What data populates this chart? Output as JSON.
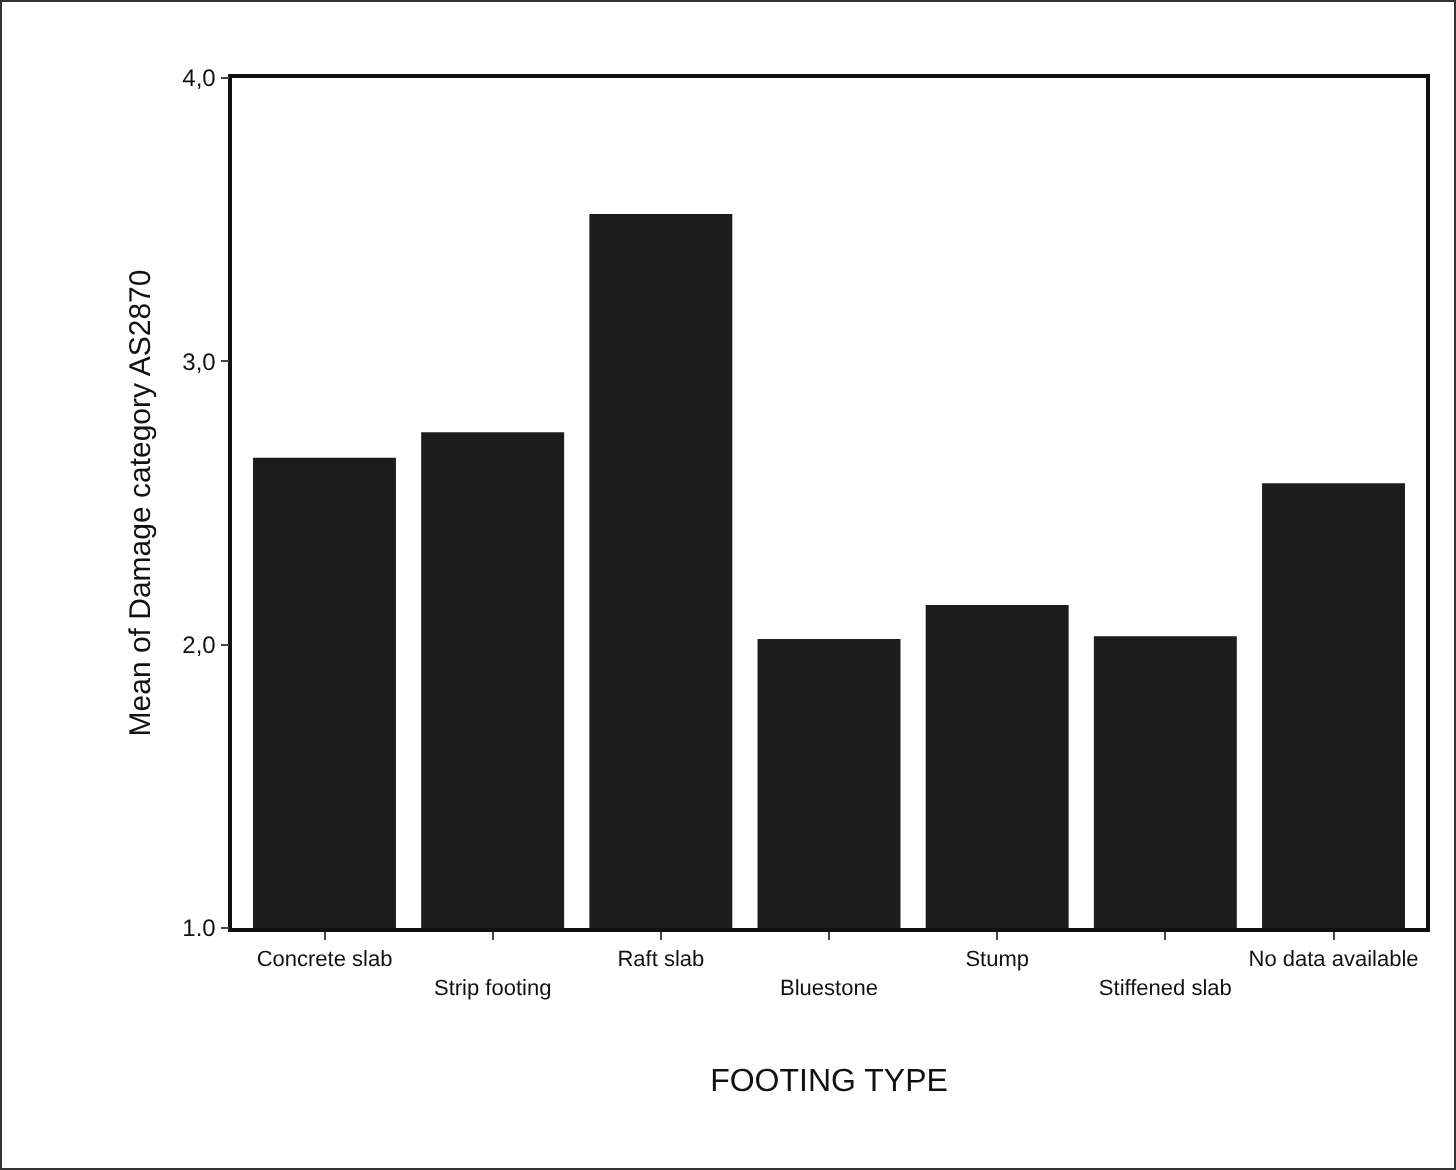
{
  "chart_data": {
    "type": "bar",
    "xlabel": "FOOTING TYPE",
    "ylabel": "Mean of Damage category AS2870",
    "categories": [
      "Concrete slab",
      "Strip footing",
      "Raft slab",
      "Bluestone",
      "Stump",
      "Stiffened slab",
      "No data available"
    ],
    "values": [
      2.66,
      2.75,
      3.52,
      2.02,
      2.14,
      2.03,
      2.57
    ],
    "color": "#1c1c1c",
    "ylim": [
      1,
      4
    ],
    "yticks": [
      {
        "value": 1,
        "label": "1.0"
      },
      {
        "value": 2,
        "label": "2,0"
      },
      {
        "value": 3,
        "label": "3,0"
      },
      {
        "value": 4,
        "label": "4,0"
      }
    ],
    "grid": false,
    "legend": false
  }
}
